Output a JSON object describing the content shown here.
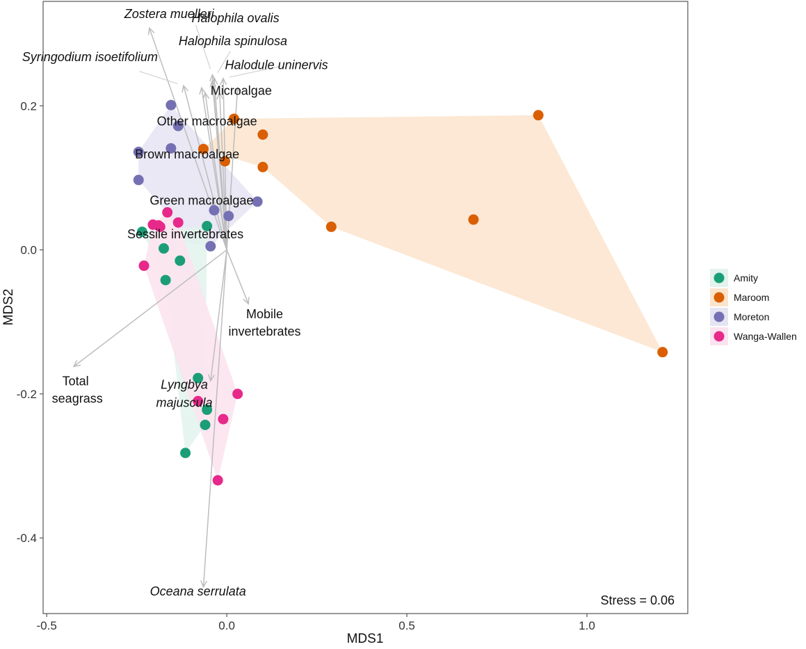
{
  "chart_data": {
    "type": "scatter",
    "xlabel": "MDS1",
    "ylabel": "MDS2",
    "xlim": [
      -0.51,
      1.28
    ],
    "ylim": [
      -0.505,
      0.345
    ],
    "xticks": [
      -0.5,
      0.0,
      0.5,
      1.0
    ],
    "xtick_labels": [
      "-0.5",
      "0.0",
      "0.5",
      "1.0"
    ],
    "yticks": [
      -0.4,
      -0.2,
      0.0,
      0.2
    ],
    "ytick_labels": [
      "-0.4",
      "-0.2",
      "0.0",
      "0.2"
    ],
    "grid": false,
    "legend_position": "right",
    "annotation": "Stress = 0.06",
    "series": [
      {
        "name": "Amity",
        "color": "#1b9e77",
        "points": [
          [
            -0.235,
            0.025
          ],
          [
            -0.175,
            0.002
          ],
          [
            -0.13,
            -0.015
          ],
          [
            -0.17,
            -0.042
          ],
          [
            -0.055,
            0.033
          ],
          [
            -0.08,
            -0.178
          ],
          [
            -0.055,
            -0.222
          ],
          [
            -0.06,
            -0.243
          ],
          [
            -0.115,
            -0.282
          ]
        ]
      },
      {
        "name": "Maroom",
        "color": "#d95f02",
        "points": [
          [
            0.02,
            0.182
          ],
          [
            0.1,
            0.16
          ],
          [
            -0.065,
            0.14
          ],
          [
            -0.005,
            0.123
          ],
          [
            0.1,
            0.115
          ],
          [
            0.29,
            0.032
          ],
          [
            0.685,
            0.042
          ],
          [
            0.865,
            0.187
          ],
          [
            1.21,
            -0.142
          ]
        ]
      },
      {
        "name": "Moreton",
        "color": "#7570b3",
        "points": [
          [
            -0.155,
            0.201
          ],
          [
            -0.135,
            0.172
          ],
          [
            -0.245,
            0.136
          ],
          [
            -0.155,
            0.141
          ],
          [
            -0.245,
            0.097
          ],
          [
            0.085,
            0.067
          ],
          [
            -0.035,
            0.055
          ],
          [
            0.005,
            0.047
          ],
          [
            -0.045,
            0.005
          ]
        ]
      },
      {
        "name": "Wanga-Wallen",
        "color": "#e7298a",
        "points": [
          [
            -0.165,
            0.052
          ],
          [
            -0.205,
            0.035
          ],
          [
            -0.19,
            0.034
          ],
          [
            -0.185,
            0.032
          ],
          [
            -0.135,
            0.038
          ],
          [
            -0.23,
            -0.022
          ],
          [
            0.03,
            -0.2
          ],
          [
            -0.08,
            -0.21
          ],
          [
            -0.01,
            -0.235
          ],
          [
            -0.025,
            -0.32
          ]
        ]
      }
    ],
    "hulls": [
      {
        "series": "Maroom",
        "color": "#fbe4cc",
        "points": [
          [
            -0.065,
            0.14
          ],
          [
            0.02,
            0.182
          ],
          [
            0.865,
            0.187
          ],
          [
            1.21,
            -0.142
          ],
          [
            0.29,
            0.032
          ],
          [
            0.1,
            0.115
          ]
        ]
      },
      {
        "series": "Moreton",
        "color": "#e5e4f2",
        "points": [
          [
            -0.245,
            0.097
          ],
          [
            -0.245,
            0.136
          ],
          [
            -0.155,
            0.201
          ],
          [
            0.085,
            0.067
          ],
          [
            -0.045,
            0.005
          ],
          [
            -0.11,
            0.01
          ],
          [
            -0.18,
            0.06
          ]
        ]
      },
      {
        "series": "Amity",
        "color": "#e2f3ec",
        "points": [
          [
            -0.235,
            0.025
          ],
          [
            -0.055,
            0.033
          ],
          [
            -0.06,
            -0.243
          ],
          [
            -0.115,
            -0.282
          ],
          [
            -0.17,
            -0.042
          ]
        ]
      },
      {
        "series": "Wanga-Wallen",
        "color": "#fbe3ef",
        "points": [
          [
            -0.205,
            0.035
          ],
          [
            -0.165,
            0.052
          ],
          [
            -0.135,
            0.038
          ],
          [
            0.03,
            -0.2
          ],
          [
            -0.025,
            -0.32
          ],
          [
            -0.23,
            -0.022
          ]
        ]
      }
    ],
    "vector_origin": [
      0.0,
      0.0
    ],
    "vectors": [
      {
        "label": "Zostera muelleri",
        "italic": true,
        "end": [
          -0.215,
          0.308
        ],
        "label_pos": [
          -0.16,
          0.322
        ],
        "leader_from": null
      },
      {
        "label": "Halophila ovalis",
        "italic": true,
        "end": [
          -0.04,
          0.243
        ],
        "label_pos": [
          0.024,
          0.316
        ],
        "leader_from": [
          -0.086,
          0.312
        ]
      },
      {
        "label": "Halophila spinulosa",
        "italic": true,
        "end": [
          -0.035,
          0.238
        ],
        "label_pos": [
          0.017,
          0.284
        ],
        "leader_from": [
          0.01,
          0.276
        ]
      },
      {
        "label": "Halodule uninervis",
        "italic": true,
        "end": [
          -0.01,
          0.238
        ],
        "label_pos": [
          0.138,
          0.251
        ],
        "leader_from": [
          0.15,
          0.255
        ]
      },
      {
        "label": "Syringodium isoetifolium",
        "italic": true,
        "end": [
          -0.12,
          0.228
        ],
        "label_pos": [
          -0.38,
          0.262
        ],
        "leader_from": [
          -0.243,
          0.248
        ]
      },
      {
        "label": "Microalgae",
        "italic": false,
        "end": [
          0.03,
          0.225
        ],
        "label_pos": [
          0.04,
          0.215
        ],
        "leader_from": null
      },
      {
        "label": "Other macroalgae",
        "italic": false,
        "end": [
          -0.02,
          0.218
        ],
        "label_pos": [
          -0.055,
          0.173
        ],
        "leader_from": null
      },
      {
        "label": "Brown macroalgae",
        "italic": false,
        "end": [
          -0.06,
          0.218
        ],
        "label_pos": [
          -0.11,
          0.127
        ],
        "leader_from": null
      },
      {
        "label": "Green macroalgae",
        "italic": false,
        "end": [
          -0.07,
          0.225
        ],
        "label_pos": [
          -0.07,
          0.063
        ],
        "leader_from": null
      },
      {
        "label": "Sessile invertebrates",
        "italic": false,
        "end": [
          -0.04,
          0.235
        ],
        "label_pos": [
          -0.115,
          0.016
        ],
        "leader_from": null
      },
      {
        "label": "Mobile invertebrates",
        "italic": false,
        "end": [
          0.06,
          -0.075
        ],
        "label_pos": [
          0.105,
          -0.095
        ],
        "label_line2_pos": [
          0.105,
          -0.119
        ],
        "leader_from": null
      },
      {
        "label": "Total seagrass",
        "italic": false,
        "end": [
          -0.425,
          -0.162
        ],
        "label_pos": [
          -0.42,
          -0.188
        ],
        "label_line2_pos": [
          -0.415,
          -0.212
        ],
        "leader_from": null
      },
      {
        "label": "Lyngbya majuscula",
        "italic": true,
        "end": [
          -0.045,
          -0.182
        ],
        "label_pos": [
          -0.118,
          -0.193
        ],
        "label_line2_pos": [
          -0.118,
          -0.218
        ],
        "leader_from": null
      },
      {
        "label": "Oceana serrulata",
        "italic": true,
        "end": [
          -0.065,
          -0.468
        ],
        "label_pos": [
          -0.08,
          -0.48
        ],
        "leader_from": null
      }
    ]
  }
}
